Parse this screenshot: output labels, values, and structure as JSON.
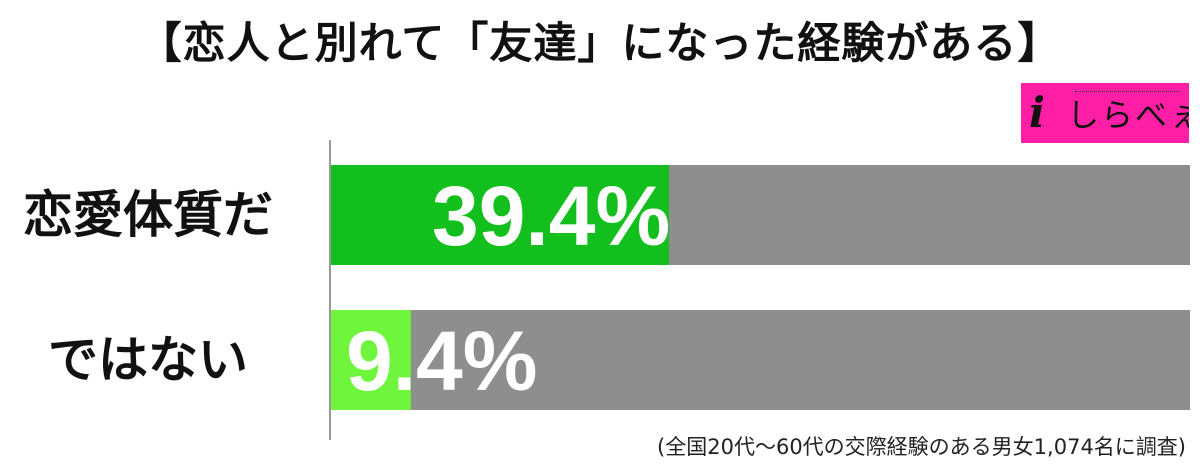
{
  "title": "【恋人と別れて「友達」になった経験がある】",
  "logo": {
    "mark": "i",
    "text": "しらべぇ"
  },
  "footnote": "(全国20代〜60代の交際経験のある男女1,074名に調査)",
  "colors": {
    "track": "#8e8e8e",
    "series": [
      "#13bf1c",
      "#6ef53c"
    ],
    "value_text": "#ffffff",
    "axis": "#999999",
    "logo_bg": "#ff1fa6"
  },
  "chart_data": {
    "type": "bar",
    "orientation": "horizontal",
    "categories": [
      "恋愛体質だ",
      "ではない"
    ],
    "values": [
      39.4,
      9.4
    ],
    "value_labels": [
      "39.4%",
      "9.4%"
    ],
    "xlim": [
      0,
      100
    ],
    "title": "【恋人と別れて「友達」になった経験がある】",
    "xlabel": "",
    "ylabel": "",
    "grid": false,
    "legend": "none"
  }
}
